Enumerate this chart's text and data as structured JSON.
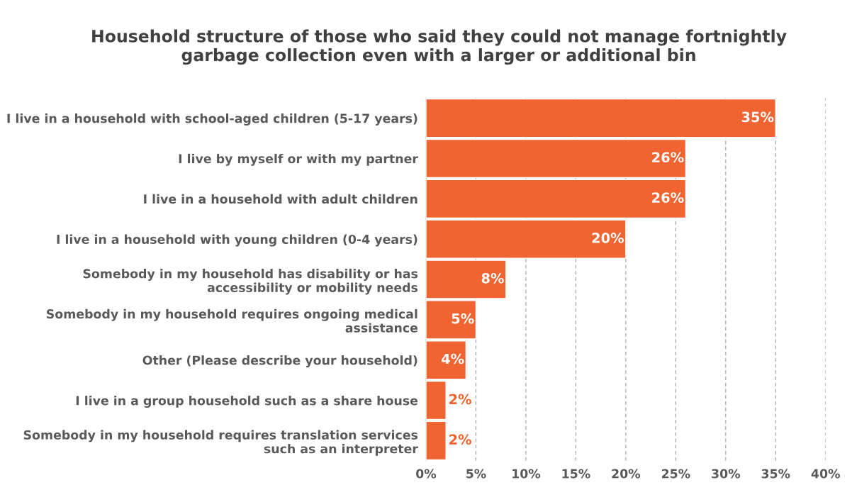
{
  "chart_data": {
    "type": "bar",
    "orientation": "horizontal",
    "title": "Household structure of those who said they could not manage fortnightly\ngarbage collection even with a larger or additional bin",
    "categories": [
      "I live in a household with school-aged children (5-17 years)",
      "I live by myself or with my partner",
      "I live in a household with adult children",
      "I live in a household with young children (0-4 years)",
      "Somebody in my household has disability or has\naccessibility or mobility needs",
      "Somebody in my household requires ongoing medical\nassistance",
      "Other (Please describe your household)",
      "I live in a group household such as a share house",
      "Somebody in my household requires translation services\nsuch as an interpreter"
    ],
    "values": [
      35,
      26,
      26,
      20,
      8,
      5,
      4,
      2,
      2
    ],
    "value_labels": [
      "35%",
      "26%",
      "26%",
      "20%",
      "8%",
      "5%",
      "4%",
      "2%",
      "2%"
    ],
    "color": "#f06431",
    "xlim": [
      0,
      40
    ],
    "xticks": [
      {
        "value": 0,
        "label": "0%"
      },
      {
        "value": 5,
        "label": "5%"
      },
      {
        "value": 10,
        "label": "10%"
      },
      {
        "value": 15,
        "label": "15%"
      },
      {
        "value": 20,
        "label": "20%"
      },
      {
        "value": 25,
        "label": "25%"
      },
      {
        "value": 30,
        "label": "30%"
      },
      {
        "value": 35,
        "label": "35%"
      },
      {
        "value": 40,
        "label": "40%"
      }
    ],
    "grid": "x",
    "legend": false
  }
}
